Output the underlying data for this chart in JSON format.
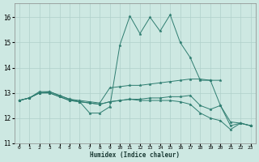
{
  "title": "",
  "xlabel": "Humidex (Indice chaleur)",
  "ylabel": "",
  "xlim": [
    -0.5,
    23.5
  ],
  "ylim": [
    11,
    16.55
  ],
  "yticks": [
    11,
    12,
    13,
    14,
    15,
    16
  ],
  "xticks": [
    0,
    1,
    2,
    3,
    4,
    5,
    6,
    7,
    8,
    9,
    10,
    11,
    12,
    13,
    14,
    15,
    16,
    17,
    18,
    19,
    20,
    21,
    22,
    23
  ],
  "background_color": "#cde8e2",
  "grid_color": "#b0d0ca",
  "line_color": "#2e7d70",
  "lines": [
    {
      "x": [
        0,
        1,
        2,
        3,
        4,
        5,
        6,
        7,
        8,
        9,
        10,
        11,
        12,
        13,
        14,
        15,
        16,
        17,
        18,
        19,
        20,
        21,
        22,
        23
      ],
      "y": [
        12.7,
        12.8,
        13.0,
        13.05,
        12.9,
        12.75,
        12.65,
        12.2,
        12.2,
        12.45,
        14.9,
        16.05,
        15.35,
        16.0,
        15.45,
        16.1,
        15.0,
        14.4,
        13.5,
        13.5,
        12.5,
        11.7,
        11.8,
        11.7
      ]
    },
    {
      "x": [
        0,
        1,
        2,
        3,
        4,
        5,
        6,
        7,
        8,
        9,
        10,
        11,
        12,
        13,
        14,
        15,
        16,
        17,
        18,
        19,
        20,
        21,
        22,
        23
      ],
      "y": [
        12.7,
        12.8,
        13.05,
        13.05,
        12.9,
        12.75,
        12.7,
        12.65,
        12.6,
        13.2,
        13.25,
        13.3,
        13.3,
        13.35,
        13.4,
        13.45,
        13.5,
        13.55,
        13.55,
        13.5,
        13.5,
        null,
        null,
        null
      ]
    },
    {
      "x": [
        0,
        1,
        2,
        3,
        4,
        5,
        6,
        7,
        8,
        9,
        10,
        11,
        12,
        13,
        14,
        15,
        16,
        17,
        18,
        19,
        20,
        21,
        22,
        23
      ],
      "y": [
        12.7,
        12.8,
        13.0,
        13.0,
        12.85,
        12.7,
        12.65,
        12.6,
        12.55,
        12.65,
        12.7,
        12.75,
        12.75,
        12.8,
        12.8,
        12.85,
        12.85,
        12.9,
        12.5,
        12.35,
        12.5,
        11.85,
        11.8,
        11.7
      ]
    },
    {
      "x": [
        0,
        1,
        2,
        3,
        4,
        5,
        6,
        7,
        8,
        9,
        10,
        11,
        12,
        13,
        14,
        15,
        16,
        17,
        18,
        19,
        20,
        21,
        22,
        23
      ],
      "y": [
        12.7,
        12.8,
        13.0,
        13.0,
        12.85,
        12.7,
        12.65,
        12.6,
        12.55,
        12.65,
        12.7,
        12.75,
        12.7,
        12.7,
        12.7,
        12.7,
        12.65,
        12.55,
        12.2,
        12.0,
        11.9,
        11.55,
        11.8,
        11.7
      ]
    }
  ]
}
